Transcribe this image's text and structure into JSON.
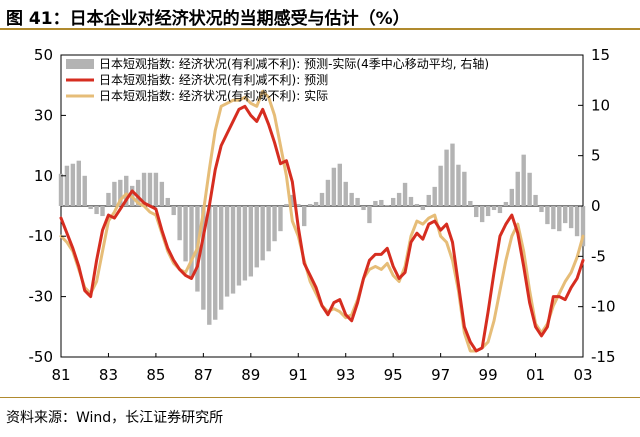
{
  "title": "图 41：日本企业对经济状况的当期感受与估计（%）",
  "source": "资料来源：Wind，长江证券研究所",
  "chart_data": {
    "type": "line",
    "xlabel": "",
    "ylabel_left": "",
    "ylabel_right": "",
    "x_tick_labels": [
      "81",
      "83",
      "85",
      "87",
      "89",
      "91",
      "93",
      "95",
      "97",
      "99",
      "01",
      "03"
    ],
    "x_range": [
      1981,
      2003
    ],
    "y_left": {
      "ticks": [
        50,
        30,
        10,
        -10,
        -30,
        -50
      ],
      "range": [
        -50,
        50
      ]
    },
    "y_right": {
      "ticks": [
        15,
        10,
        5,
        0,
        -5,
        -10,
        -15
      ],
      "range": [
        -15,
        15
      ]
    },
    "colors": {
      "bars": "#b3b3b3",
      "forecast": "#d62d20",
      "actual": "#e6bd78"
    },
    "legend_position": "top",
    "series": [
      {
        "name": "日本短观指数: 经济状况(有利减不利): 预测-实际(4季中心移动平均, 右轴)",
        "type": "bar",
        "axis": "right",
        "x": [
          1981.0,
          1981.25,
          1981.5,
          1981.75,
          1982.0,
          1982.25,
          1982.5,
          1982.75,
          1983.0,
          1983.25,
          1983.5,
          1983.75,
          1984.0,
          1984.25,
          1984.5,
          1984.75,
          1985.0,
          1985.25,
          1985.5,
          1985.75,
          1986.0,
          1986.25,
          1986.5,
          1986.75,
          1987.0,
          1987.25,
          1987.5,
          1987.75,
          1988.0,
          1988.25,
          1988.5,
          1988.75,
          1989.0,
          1989.25,
          1989.5,
          1989.75,
          1990.0,
          1990.25,
          1990.5,
          1990.75,
          1991.0,
          1991.25,
          1991.5,
          1991.75,
          1992.0,
          1992.25,
          1992.5,
          1992.75,
          1993.0,
          1993.25,
          1993.5,
          1993.75,
          1994.0,
          1994.25,
          1994.5,
          1994.75,
          1995.0,
          1995.25,
          1995.5,
          1995.75,
          1996.0,
          1996.25,
          1996.5,
          1996.75,
          1997.0,
          1997.25,
          1997.5,
          1997.75,
          1998.0,
          1998.25,
          1998.5,
          1998.75,
          1999.0,
          1999.25,
          1999.5,
          1999.75,
          2000.0,
          2000.25,
          2000.5,
          2000.75,
          2001.0,
          2001.25,
          2001.5,
          2001.75,
          2002.0,
          2002.25,
          2002.5,
          2002.75,
          2003.0
        ],
        "values": [
          3.2,
          4.0,
          4.2,
          4.5,
          3.0,
          -0.3,
          -0.8,
          -1.0,
          1.3,
          2.4,
          2.6,
          3.0,
          2.0,
          2.6,
          3.3,
          3.3,
          3.3,
          2.4,
          0.8,
          -0.9,
          -3.4,
          -5.5,
          -7.0,
          -8.5,
          -10.3,
          -11.8,
          -11.3,
          -10.3,
          -9.0,
          -8.7,
          -7.9,
          -7.4,
          -7.0,
          -6.1,
          -5.4,
          -4.5,
          -3.5,
          -2.5,
          0.2,
          1.1,
          0.2,
          -2.0,
          0.2,
          0.4,
          1.3,
          2.6,
          3.8,
          4.2,
          2.4,
          1.3,
          0.8,
          -0.4,
          -1.7,
          0.5,
          0.6,
          0.1,
          0.8,
          1.3,
          2.3,
          0.9,
          0.2,
          -0.4,
          1.1,
          1.9,
          4.0,
          5.6,
          6.2,
          4.1,
          3.4,
          0.5,
          -1.1,
          -1.6,
          -1.0,
          -0.4,
          -0.7,
          0.4,
          1.7,
          3.4,
          5.1,
          3.3,
          1.1,
          -0.6,
          -1.8,
          -2.3,
          -2.5,
          -1.7,
          -2.2,
          -3.0,
          -4.0
        ]
      },
      {
        "name": "日本短观指数: 经济状况(有利减不利): 预测",
        "type": "line",
        "axis": "left",
        "x": [
          1981.0,
          1981.25,
          1981.5,
          1981.75,
          1982.0,
          1982.25,
          1982.5,
          1982.75,
          1983.0,
          1983.25,
          1983.5,
          1983.75,
          1984.0,
          1984.25,
          1984.5,
          1984.75,
          1985.0,
          1985.25,
          1985.5,
          1985.75,
          1986.0,
          1986.25,
          1986.5,
          1986.75,
          1987.0,
          1987.25,
          1987.5,
          1987.75,
          1988.0,
          1988.25,
          1988.5,
          1988.75,
          1989.0,
          1989.25,
          1989.5,
          1989.75,
          1990.0,
          1990.25,
          1990.5,
          1990.75,
          1991.0,
          1991.25,
          1991.5,
          1991.75,
          1992.0,
          1992.25,
          1992.5,
          1992.75,
          1993.0,
          1993.25,
          1993.5,
          1993.75,
          1994.0,
          1994.25,
          1994.5,
          1994.75,
          1995.0,
          1995.25,
          1995.5,
          1995.75,
          1996.0,
          1996.25,
          1996.5,
          1996.75,
          1997.0,
          1997.25,
          1997.5,
          1997.75,
          1998.0,
          1998.25,
          1998.5,
          1998.75,
          1999.0,
          1999.25,
          1999.5,
          1999.75,
          2000.0,
          2000.25,
          2000.5,
          2000.75,
          2001.0,
          2001.25,
          2001.5,
          2001.75,
          2002.0,
          2002.25,
          2002.5,
          2002.75,
          2003.0
        ],
        "values": [
          -4,
          -9,
          -14,
          -20,
          -28,
          -30,
          -18,
          -8,
          -3,
          -4,
          -1,
          2,
          5,
          3,
          1,
          0,
          -1,
          -8,
          -14,
          -18,
          -21,
          -23,
          -24,
          -20,
          -10,
          0,
          12,
          20,
          24,
          28,
          32,
          33,
          30,
          28,
          32,
          27,
          21,
          14,
          15,
          8,
          -7,
          -19,
          -23,
          -27,
          -33,
          -36,
          -32,
          -31,
          -36,
          -38,
          -32,
          -24,
          -18,
          -16,
          -16,
          -14,
          -20,
          -24,
          -22,
          -12,
          -9,
          -11,
          -6,
          -5,
          -8,
          -6,
          -12,
          -26,
          -40,
          -45,
          -48,
          -47,
          -35,
          -22,
          -10,
          -6,
          -3,
          -9,
          -20,
          -32,
          -40,
          -43,
          -40,
          -30,
          -30,
          -31,
          -27,
          -24,
          -18
        ]
      },
      {
        "name": "日本短观指数: 经济状况(有利减不利): 实际",
        "type": "line",
        "axis": "left",
        "x": [
          1981.0,
          1981.25,
          1981.5,
          1981.75,
          1982.0,
          1982.25,
          1982.5,
          1982.75,
          1983.0,
          1983.25,
          1983.5,
          1983.75,
          1984.0,
          1984.25,
          1984.5,
          1984.75,
          1985.0,
          1985.25,
          1985.5,
          1985.75,
          1986.0,
          1986.25,
          1986.5,
          1986.75,
          1987.0,
          1987.25,
          1987.5,
          1987.75,
          1988.0,
          1988.25,
          1988.5,
          1988.75,
          1989.0,
          1989.25,
          1989.5,
          1989.75,
          1990.0,
          1990.25,
          1990.5,
          1990.75,
          1991.0,
          1991.25,
          1991.5,
          1991.75,
          1992.0,
          1992.25,
          1992.5,
          1992.75,
          1993.0,
          1993.25,
          1993.5,
          1993.75,
          1994.0,
          1994.25,
          1994.5,
          1994.75,
          1995.0,
          1995.25,
          1995.5,
          1995.75,
          1996.0,
          1996.25,
          1996.5,
          1996.75,
          1997.0,
          1997.25,
          1997.5,
          1997.75,
          1998.0,
          1998.25,
          1998.5,
          1998.75,
          1999.0,
          1999.25,
          1999.5,
          1999.75,
          2000.0,
          2000.25,
          2000.5,
          2000.75,
          2001.0,
          2001.25,
          2001.5,
          2001.75,
          2002.0,
          2002.25,
          2002.5,
          2002.75,
          2003.0
        ],
        "values": [
          -10,
          -12,
          -15,
          -21,
          -27,
          -29,
          -25,
          -15,
          -5,
          -2,
          2,
          4,
          3,
          1,
          0,
          -2,
          -3,
          -9,
          -15,
          -19,
          -21,
          -22,
          -18,
          -14,
          -2,
          12,
          25,
          33,
          34,
          35,
          35,
          36,
          34,
          33,
          38,
          36,
          30,
          20,
          10,
          -5,
          -10,
          -18,
          -25,
          -29,
          -33,
          -35,
          -34,
          -35,
          -37,
          -36,
          -31,
          -24,
          -21,
          -20,
          -21,
          -19,
          -23,
          -25,
          -20,
          -10,
          -5,
          -6,
          -4,
          -3,
          -10,
          -12,
          -18,
          -28,
          -42,
          -48,
          -48,
          -47,
          -45,
          -38,
          -28,
          -18,
          -10,
          -6,
          -15,
          -28,
          -39,
          -42,
          -39,
          -33,
          -29,
          -25,
          -22,
          -17,
          -10
        ]
      }
    ]
  }
}
